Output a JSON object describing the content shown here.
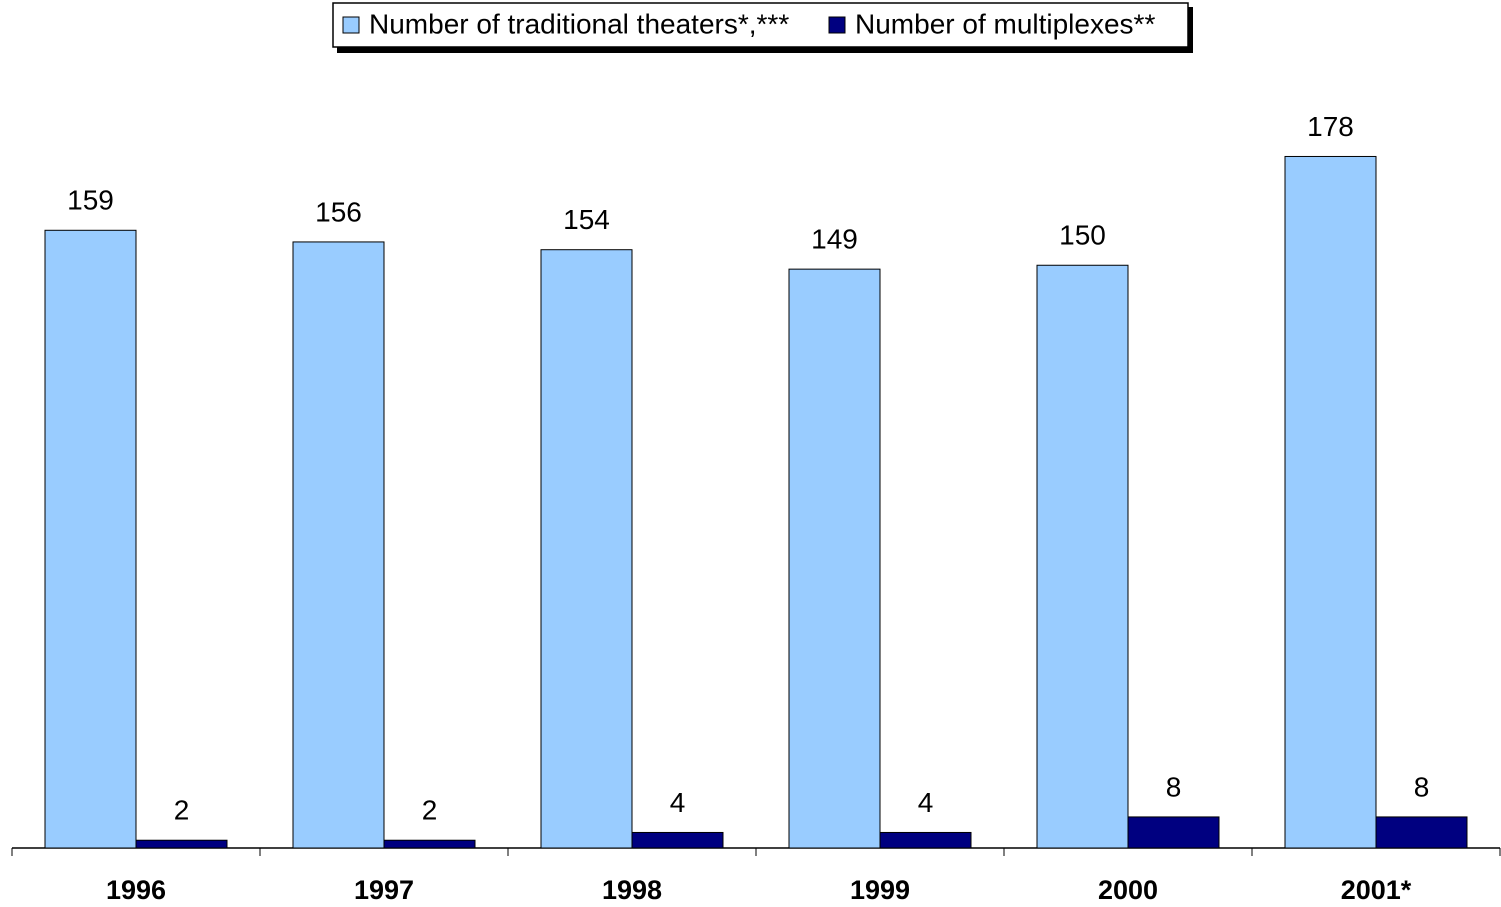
{
  "chart_data": {
    "type": "bar",
    "categories": [
      "1996",
      "1997",
      "1998",
      "1999",
      "2000",
      "2001*"
    ],
    "series": [
      {
        "name": "Number of traditional theaters*,***",
        "color": "#99ccff",
        "values": [
          159,
          156,
          154,
          149,
          150,
          178
        ]
      },
      {
        "name": "Number of multiplexes**",
        "color": "#000080",
        "values": [
          2,
          2,
          4,
          4,
          8,
          8
        ]
      }
    ],
    "legend": "top"
  }
}
